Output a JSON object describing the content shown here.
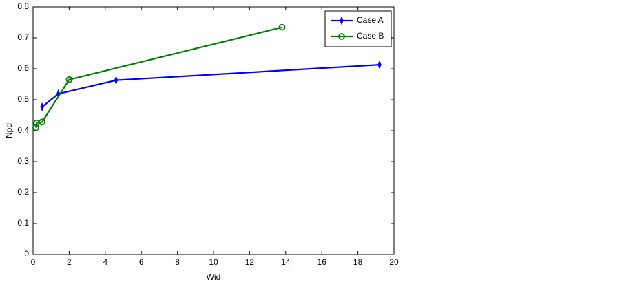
{
  "chart_data": {
    "type": "line",
    "x_label": "Wid",
    "y_label": "Npd",
    "xlim": [
      0,
      20
    ],
    "xticks": [
      0,
      2,
      4,
      6,
      8,
      10,
      12,
      14,
      16,
      18,
      20
    ],
    "ylim": [
      0,
      0.8
    ],
    "yticks": [
      0,
      0.1,
      0.2,
      0.3,
      0.4,
      0.5,
      0.6,
      0.7,
      0.8
    ],
    "grid": false,
    "legend": "top-right",
    "series": [
      {
        "name": "Case A",
        "color": "#0000ff",
        "marker": "diamond",
        "x": [
          0.5,
          1.4,
          4.6,
          19.2
        ],
        "values": [
          0.477,
          0.519,
          0.563,
          0.613
        ]
      },
      {
        "name": "Case B",
        "color": "#008000",
        "marker": "circle",
        "x": [
          0.15,
          0.2,
          0.5,
          2.0,
          13.8
        ],
        "values": [
          0.41,
          0.425,
          0.428,
          0.565,
          0.734
        ]
      }
    ]
  }
}
